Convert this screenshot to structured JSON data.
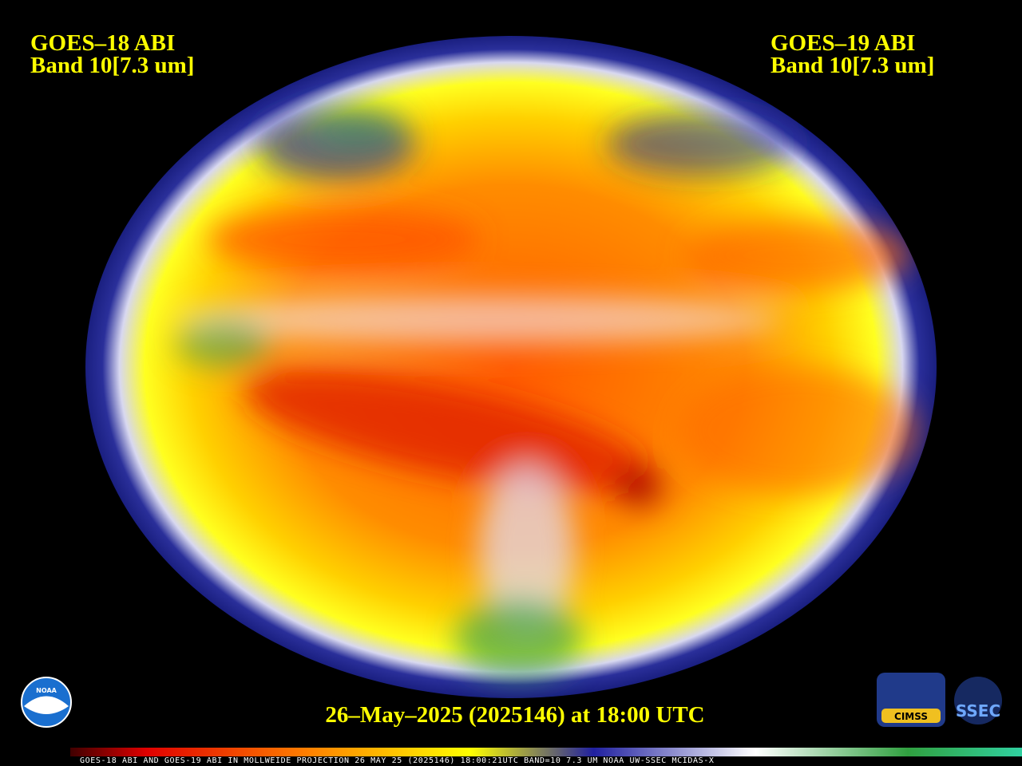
{
  "left_label": {
    "satellite": "GOES–18 ABI",
    "band": "Band 10[7.3 um]"
  },
  "right_label": {
    "satellite": "GOES–19 ABI",
    "band": "Band 10[7.3 um]"
  },
  "timestamp": "26–May–2025 (2025146) at 18:00 UTC",
  "logos": {
    "noaa": "NOAA",
    "cimss": "CIMSS",
    "ssec": "SSEC"
  },
  "footer": "GOES-18 ABI AND GOES-19 ABI IN MOLLWEIDE PROJECTION 26 MAY 25 (2025146) 18:00:21UTC BAND=10 7.3 UM NOAA UW-SSEC MCIDAS-X"
}
